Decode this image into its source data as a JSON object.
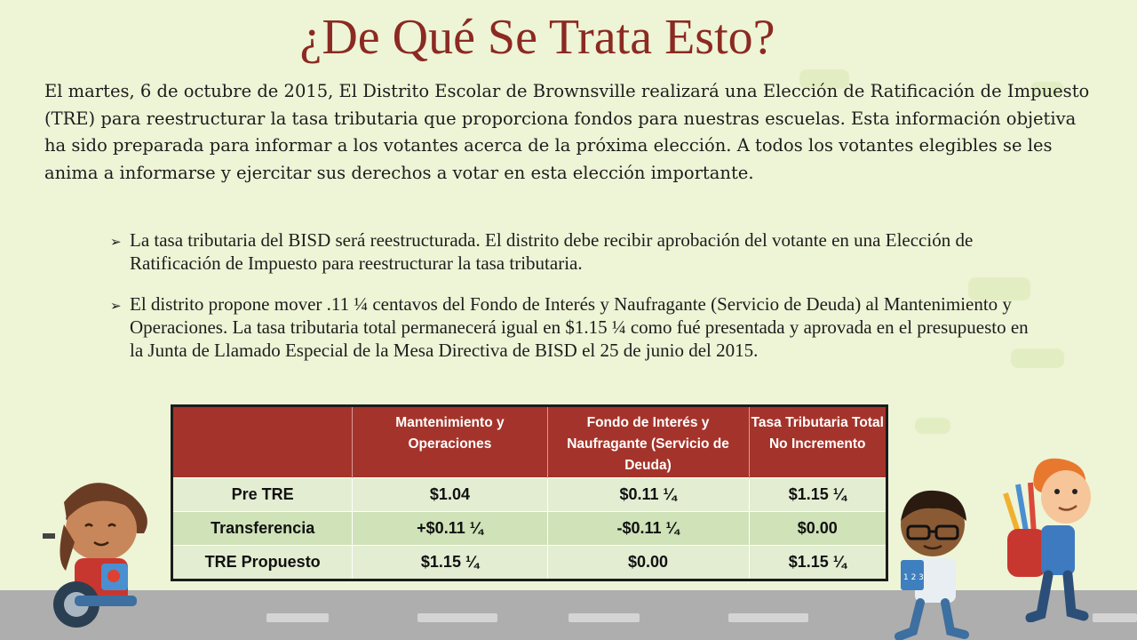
{
  "title": "¿De Qué Se Trata Esto?",
  "intro": "El martes, 6 de octubre de 2015, El Distrito Escolar de Brownsville realizará una Elección de Ratificación de Impuesto (TRE) para reestructurar la tasa tributaria que proporciona fondos para nuestras escuelas. Esta información objetiva ha sido preparada para informar a los votantes acerca de la próxima elección. A todos los votantes elegibles se les anima a informarse y ejercitar sus derechos a votar en esta elección importante.",
  "bullets": [
    "La tasa tributaria del BISD será reestructurada. El distrito debe recibir aprobación del votante en una Elección de Ratificación de Impuesto para reestructurar la tasa tributaria.",
    "El distrito propone mover .11 ¼ centavos del Fondo de Interés y Naufragante (Servicio de Deuda) al Mantenimiento y Operaciones. La tasa tributaria total permanecerá igual en $1.15 ¼ como fué presentada y aprovada en el presupuesto en la Junta de Llamado Especial de la Mesa Directiva de BISD el 25 de junio del 2015."
  ],
  "table": {
    "headers": [
      "",
      "Mantenimiento y Operaciones",
      "Fondo de Interés y Naufragante (Servicio de Deuda)",
      "Tasa Tributaria Total No Incremento"
    ],
    "rows": [
      [
        "Pre TRE",
        "$1.04",
        "$0.11 ¼",
        "$1.15 ¼"
      ],
      [
        "Transferencia",
        "+$0.11 ¼",
        "-$0.11 ¼",
        "$0.00"
      ],
      [
        "TRE Propuesto",
        "$1.15 ¼",
        "$0.00",
        "$1.15 ¼"
      ]
    ]
  },
  "lunchbox_label": "",
  "book_label": "1 2 3",
  "colors": {
    "title": "#8b2a22",
    "header": "#a4342b",
    "background": "#eef4d6"
  },
  "icons": {
    "bullet": "arrow-bullet-icon"
  }
}
